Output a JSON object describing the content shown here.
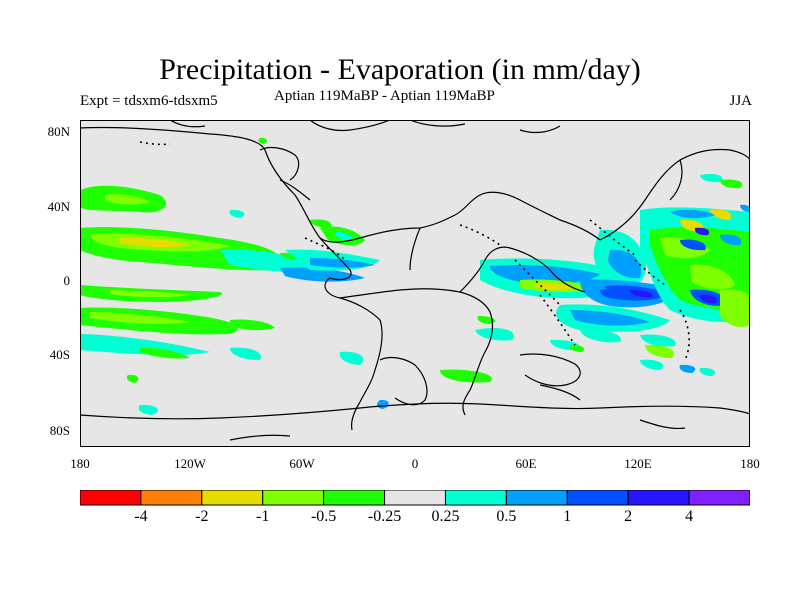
{
  "title": "Precipitation - Evaporation (in mm/day)",
  "subtitle_left": "Expt = tdsxm6-tdsxm5",
  "subtitle_center": "Aptian   119MaBP - Aptian   119MaBP",
  "subtitle_right": "JJA",
  "lat_labels": [
    "80N",
    "40N",
    "0",
    "40S",
    "80S"
  ],
  "lon_labels": [
    "180",
    "120W",
    "60W",
    "0",
    "60E",
    "120E",
    "180"
  ],
  "colorbar": {
    "colors": [
      "#ff0000",
      "#ff8000",
      "#e6dc00",
      "#80ff00",
      "#1eff00",
      "#e6e6e6",
      "#00ffd2",
      "#00a0ff",
      "#0050ff",
      "#2814ff",
      "#8020ff"
    ],
    "labels": [
      "-4",
      "-2",
      "-1",
      "-0.5",
      "-0.25",
      "0.25",
      "0.5",
      "1",
      "2",
      "4"
    ]
  }
}
